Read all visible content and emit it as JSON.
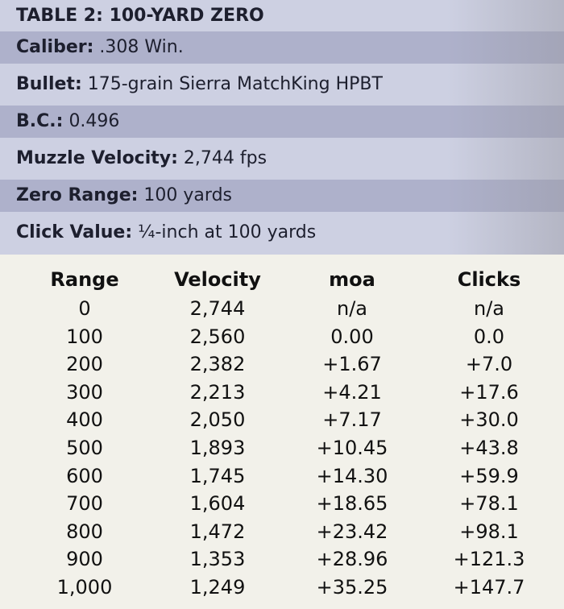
{
  "header": {
    "title": "TABLE 2: 100-YARD ZERO",
    "specs": [
      {
        "label": "Caliber:",
        "value": ".308 Win."
      },
      {
        "label": "Bullet:",
        "value": "175-grain Sierra MatchKing HPBT"
      },
      {
        "label": "B.C.:",
        "value": "0.496"
      },
      {
        "label": "Muzzle Velocity:",
        "value": "2,744 fps"
      },
      {
        "label": "Zero Range:",
        "value": "100 yards"
      },
      {
        "label": "Click Value:",
        "value": "¼-inch at 100 yards"
      }
    ]
  },
  "table": {
    "columns": [
      "Range",
      "Velocity",
      "moa",
      "Clicks"
    ],
    "rows": [
      [
        "0",
        "2,744",
        "n/a",
        "n/a"
      ],
      [
        "100",
        "2,560",
        "0.00",
        "0.0"
      ],
      [
        "200",
        "2,382",
        "+1.67",
        "+7.0"
      ],
      [
        "300",
        "2,213",
        "+4.21",
        "+17.6"
      ],
      [
        "400",
        "2,050",
        "+7.17",
        "+30.0"
      ],
      [
        "500",
        "1,893",
        "+10.45",
        "+43.8"
      ],
      [
        "600",
        "1,745",
        "+14.30",
        "+59.9"
      ],
      [
        "700",
        "1,604",
        "+18.65",
        "+78.1"
      ],
      [
        "800",
        "1,472",
        "+23.42",
        "+98.1"
      ],
      [
        "900",
        "1,353",
        "+28.96",
        "+121.3"
      ],
      [
        "1,000",
        "1,249",
        "+35.25",
        "+147.7"
      ]
    ]
  }
}
